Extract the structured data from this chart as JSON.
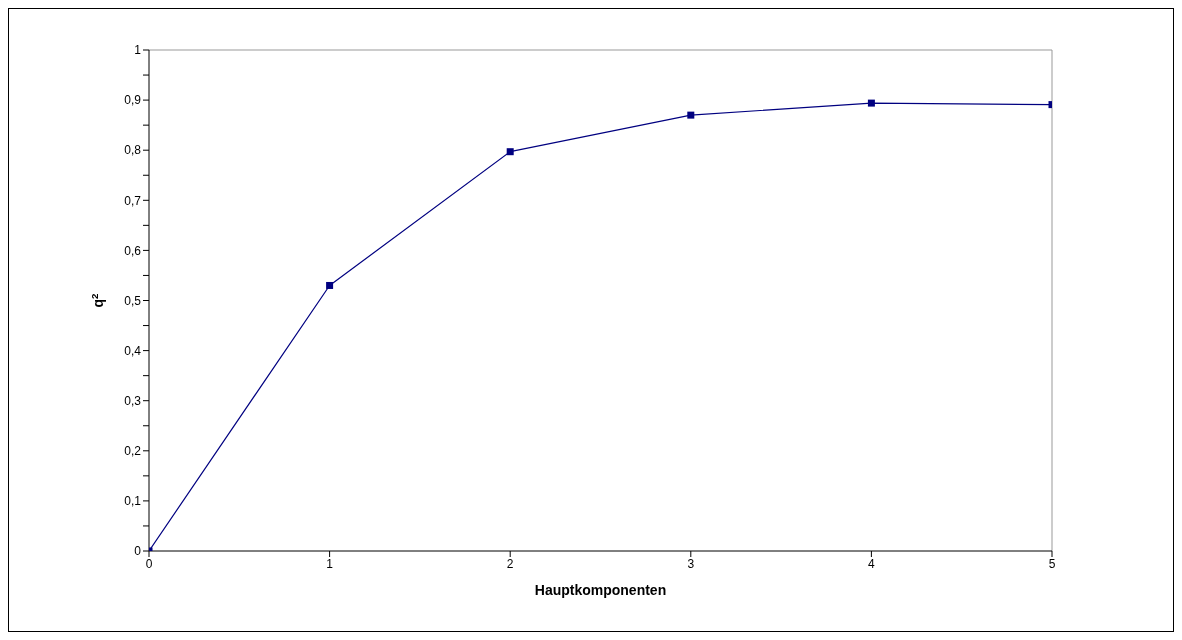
{
  "chart_data": {
    "type": "line",
    "xlabel": "Hauptkomponenten",
    "ylabel": "q$^{2}$",
    "x": [
      0,
      1,
      2,
      3,
      4,
      5
    ],
    "series": [
      {
        "color": "#000080",
        "values": [
          0,
          0.53,
          0.797,
          0.87,
          0.894,
          0.891
        ]
      }
    ],
    "xlim": [
      0,
      5
    ],
    "xticks": [
      0,
      1,
      2,
      3,
      4,
      5
    ],
    "ylim": [
      0,
      1
    ],
    "yticks": [
      0,
      {
        "value": 0.05,
        "label": null
      },
      {
        "value": 0.1,
        "label": "0,1"
      },
      {
        "value": 0.15,
        "label": null
      },
      {
        "value": 0.2,
        "label": "0,2"
      },
      {
        "value": 0.25,
        "label": null
      },
      {
        "value": 0.3,
        "label": "0,3"
      },
      {
        "value": 0.35,
        "label": null
      },
      {
        "value": 0.4,
        "label": "0,4"
      },
      {
        "value": 0.45,
        "label": null
      },
      {
        "value": 0.5,
        "label": "0,5"
      },
      {
        "value": 0.55,
        "label": null
      },
      {
        "value": 0.6,
        "label": "0,6"
      },
      {
        "value": 0.65,
        "label": null
      },
      {
        "value": 0.7,
        "label": "0,7"
      },
      {
        "value": 0.75,
        "label": null
      },
      {
        "value": 0.8,
        "label": "0,8"
      },
      {
        "value": 0.85,
        "label": null
      },
      {
        "value": 0.9,
        "label": "0,9"
      },
      {
        "value": 0.95,
        "label": null
      },
      1
    ],
    "grid": false,
    "marker": "square",
    "line_style": "solid"
  }
}
